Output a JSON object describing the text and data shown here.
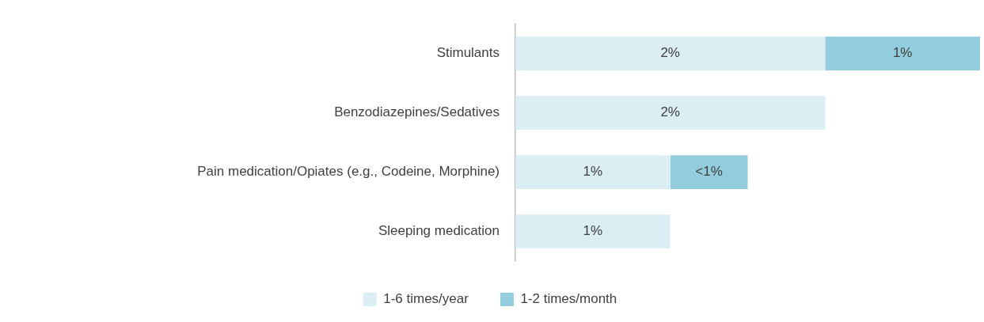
{
  "chart_data": {
    "type": "bar",
    "orientation": "horizontal",
    "stacked": true,
    "categories": [
      "Stimulants",
      "Benzodiazepines/Sedatives",
      "Pain medication/Opiates (e.g., Codeine, Morphine)",
      "Sleeping medication"
    ],
    "series": [
      {
        "name": "1-6 times/year",
        "color": "#dbeef4",
        "values": [
          2,
          2,
          1,
          1
        ],
        "value_labels": [
          "2%",
          "2%",
          "1%",
          "1%"
        ]
      },
      {
        "name": "1-2 times/month",
        "color": "#93cddd",
        "values": [
          1,
          null,
          0.5,
          null
        ],
        "value_labels": [
          "1%",
          null,
          "<1%",
          null
        ]
      }
    ],
    "legend": "bottom"
  }
}
